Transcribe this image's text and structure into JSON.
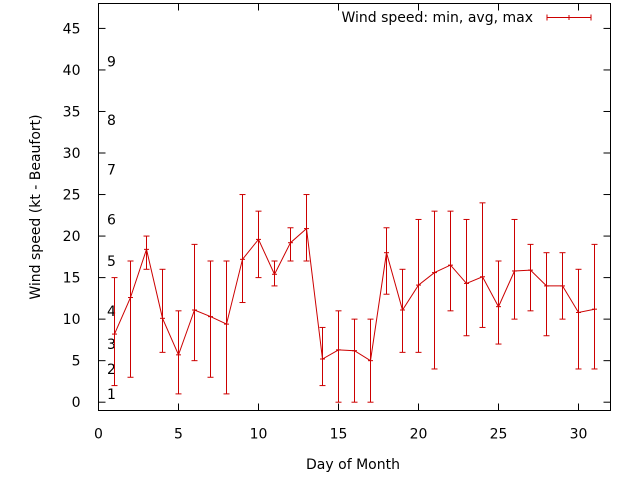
{
  "chart_data": {
    "type": "line",
    "xlabel": "Day of Month",
    "ylabel": "Wind speed (kt - Beaufort)",
    "xlim": [
      0,
      32
    ],
    "ylim": [
      -1,
      48
    ],
    "x_ticks": [
      0,
      5,
      10,
      15,
      20,
      25,
      30
    ],
    "y_ticks": [
      0,
      5,
      10,
      15,
      20,
      25,
      30,
      35,
      40,
      45
    ],
    "beaufort_labels": [
      {
        "label": "1",
        "y": 1
      },
      {
        "label": "2",
        "y": 4
      },
      {
        "label": "3",
        "y": 7
      },
      {
        "label": "4",
        "y": 11
      },
      {
        "label": "5",
        "y": 17
      },
      {
        "label": "6",
        "y": 22
      },
      {
        "label": "7",
        "y": 28
      },
      {
        "label": "8",
        "y": 34
      },
      {
        "label": "9",
        "y": 41
      }
    ],
    "legend_position": "top-right",
    "grid": false,
    "colors": {
      "series": "#cc0000",
      "axes": "#000000"
    },
    "series": [
      {
        "name": "Wind speed: min, avg, max",
        "points": [
          {
            "x": 1,
            "y": 8.2,
            "min": 2,
            "max": 15
          },
          {
            "x": 2,
            "y": 12.6,
            "min": 3,
            "max": 17
          },
          {
            "x": 3,
            "y": 18.4,
            "min": 16,
            "max": 20
          },
          {
            "x": 4,
            "y": 10.1,
            "min": 6,
            "max": 16
          },
          {
            "x": 5,
            "y": 5.7,
            "min": 1,
            "max": 11
          },
          {
            "x": 6,
            "y": 11.1,
            "min": 5,
            "max": 19
          },
          {
            "x": 7,
            "y": 10.3,
            "min": 3,
            "max": 17
          },
          {
            "x": 8,
            "y": 9.4,
            "min": 1,
            "max": 17
          },
          {
            "x": 9,
            "y": 17.2,
            "min": 12,
            "max": 25
          },
          {
            "x": 10,
            "y": 19.6,
            "min": 15,
            "max": 23
          },
          {
            "x": 11,
            "y": 15.4,
            "min": 14,
            "max": 17
          },
          {
            "x": 12,
            "y": 19.2,
            "min": 17,
            "max": 21
          },
          {
            "x": 13,
            "y": 20.9,
            "min": 17,
            "max": 25
          },
          {
            "x": 14,
            "y": 5.2,
            "min": 2,
            "max": 9
          },
          {
            "x": 15,
            "y": 6.3,
            "min": 0,
            "max": 11
          },
          {
            "x": 16,
            "y": 6.2,
            "min": 0,
            "max": 10
          },
          {
            "x": 17,
            "y": 5.0,
            "min": 0,
            "max": 10
          },
          {
            "x": 18,
            "y": 18.0,
            "min": 13,
            "max": 21
          },
          {
            "x": 19,
            "y": 11.1,
            "min": 6,
            "max": 16
          },
          {
            "x": 20,
            "y": 14.1,
            "min": 6,
            "max": 22
          },
          {
            "x": 21,
            "y": 15.6,
            "min": 4,
            "max": 23
          },
          {
            "x": 22,
            "y": 16.5,
            "min": 11,
            "max": 23
          },
          {
            "x": 23,
            "y": 14.3,
            "min": 8,
            "max": 22
          },
          {
            "x": 24,
            "y": 15.1,
            "min": 9,
            "max": 24
          },
          {
            "x": 25,
            "y": 11.5,
            "min": 7,
            "max": 17
          },
          {
            "x": 26,
            "y": 15.8,
            "min": 10,
            "max": 22
          },
          {
            "x": 27,
            "y": 15.9,
            "min": 11,
            "max": 19
          },
          {
            "x": 28,
            "y": 14.0,
            "min": 8,
            "max": 18
          },
          {
            "x": 29,
            "y": 14.0,
            "min": 10,
            "max": 18
          },
          {
            "x": 30,
            "y": 10.8,
            "min": 4,
            "max": 16
          },
          {
            "x": 31,
            "y": 11.2,
            "min": 4,
            "max": 19
          }
        ]
      }
    ]
  }
}
